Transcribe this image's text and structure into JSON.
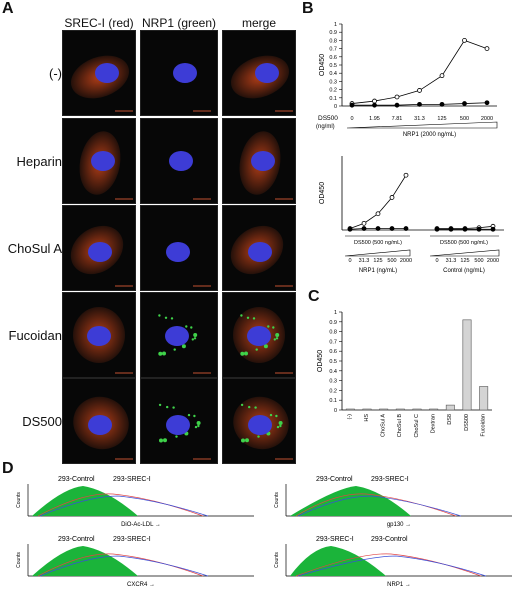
{
  "panel_a": {
    "letter": "A",
    "columns": [
      "SREC-I (red)",
      "NRP1 (green)",
      "merge"
    ],
    "rows": [
      "(-)",
      "Heparin",
      "ChoSul A",
      "Fucoidan",
      "DS500"
    ]
  },
  "panel_b": {
    "letter": "B",
    "top": {
      "ylabel": "OD450",
      "yticks": [
        "0",
        "0.1",
        "0.2",
        "0.3",
        "0.4",
        "0.5",
        "0.6",
        "0.7",
        "0.8",
        "0.9",
        "1"
      ],
      "ds_label": "DS500",
      "ds_unit": "(ng/ml)",
      "xticks": [
        "0",
        "1.95",
        "7.81",
        "31.3",
        "125",
        "500",
        "2000"
      ],
      "xlabel": "NRP1 (2000 ng/mL)"
    },
    "bottom": {
      "ylabel": "OD450",
      "bracket_left": "DS500 (500 ng/mL)",
      "bracket_right": "DS500 (500 ng/mL)",
      "xticks": [
        "0",
        "31.3",
        "125",
        "500",
        "2000"
      ],
      "xlabel_left": "NRP1",
      "xlabel_left_unit": "(ng/mL)",
      "xlabel_right": "Control",
      "xlabel_right_unit": "(ng/mL)"
    }
  },
  "panel_c": {
    "letter": "C",
    "ylabel": "OD450",
    "yticks": [
      "0",
      "0.1",
      "0.2",
      "0.3",
      "0.4",
      "0.5",
      "0.6",
      "0.7",
      "0.8",
      "0.9",
      "1"
    ]
  },
  "panel_d": {
    "letter": "D",
    "ylabel": "Counts",
    "histograms": [
      {
        "marker": "DiO-Ac-LDL",
        "label_a": "293-Control",
        "label_b": "293-SREC-I"
      },
      {
        "marker": "gp130",
        "label_a": "293-Control",
        "label_b": "293-SREC-I"
      },
      {
        "marker": "CXCR4",
        "label_a": "293-Control",
        "label_b": "293-SREC-I"
      },
      {
        "marker": "NRP1",
        "label_a": "293-SREC-I",
        "label_b": "293-Control"
      }
    ]
  },
  "chart_data": [
    {
      "type": "line",
      "panel": "B-top",
      "ylabel": "OD450",
      "ylim": [
        0,
        1
      ],
      "categories": [
        "0",
        "1.95",
        "7.81",
        "31.3",
        "125",
        "500",
        "2000"
      ],
      "series": [
        {
          "marker": "open",
          "values": [
            0.03,
            0.06,
            0.11,
            0.19,
            0.37,
            0.8,
            0.7
          ]
        },
        {
          "marker": "filled",
          "values": [
            0.01,
            0.01,
            0.01,
            0.02,
            0.02,
            0.03,
            0.04
          ]
        }
      ]
    },
    {
      "type": "line",
      "panel": "B-bottom",
      "ylabel": "OD450",
      "ylim": [
        0,
        1
      ],
      "categories": [
        "0",
        "31.3",
        "125",
        "500",
        "2000",
        "0",
        "31.3",
        "125",
        "500",
        "2000"
      ],
      "series": [
        {
          "marker": "open",
          "values": [
            0.02,
            0.09,
            0.22,
            0.44,
            0.74,
            0.02,
            0.02,
            0.02,
            0.03,
            0.05
          ]
        },
        {
          "marker": "filled",
          "values": [
            0.01,
            0.02,
            0.02,
            0.02,
            0.02,
            0.01,
            0.01,
            0.01,
            0.01,
            0.01
          ]
        }
      ]
    },
    {
      "type": "bar",
      "panel": "C",
      "ylabel": "OD450",
      "ylim": [
        0,
        1
      ],
      "categories": [
        "(-)",
        "HS",
        "ChoSul A",
        "ChoSul B",
        "ChoSul C",
        "Dextran",
        "DS8",
        "DS500",
        "Fucoidan"
      ],
      "values": [
        0.01,
        0.01,
        0.01,
        0.01,
        0.01,
        0.01,
        0.05,
        0.92,
        0.24
      ]
    }
  ],
  "colors": {
    "nucleus": "#3d3cd6",
    "srec": "#c8451a",
    "nrp1": "#3fd24a",
    "hist_fill": "#1bb43a",
    "hist_red": "#e04545",
    "hist_blue": "#3b4fd8"
  }
}
